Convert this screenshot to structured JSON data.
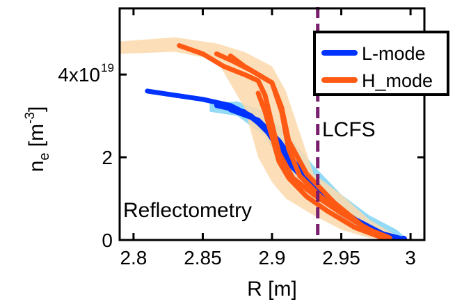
{
  "chart_data": {
    "type": "line",
    "xlabel": "R [m]",
    "ylabel_main": "n",
    "ylabel_sub": "e",
    "ylabel_unit_open": " [m",
    "ylabel_unit_exp": "-3",
    "ylabel_unit_close": "]",
    "xlim": [
      2.79,
      3.01
    ],
    "ylim": [
      0,
      5.6
    ],
    "x_ticks": [
      {
        "value": 2.8,
        "label": "2.8"
      },
      {
        "value": 2.85,
        "label": "2.85"
      },
      {
        "value": 2.9,
        "label": "2.9"
      },
      {
        "value": 2.95,
        "label": "2.95"
      },
      {
        "value": 3.0,
        "label": "3"
      }
    ],
    "y_ticks": [
      {
        "value": 0,
        "label": "0"
      },
      {
        "value": 2,
        "label": "2"
      },
      {
        "value": 4,
        "label": "4x10",
        "exponent": "19"
      }
    ],
    "legend_position": "top-right",
    "series": [
      {
        "name": "L-mode",
        "color": "#0033ff",
        "band_color": "#7fd3f5",
        "band_upper": [
          [
            2.855,
            3.3
          ],
          [
            2.875,
            3.35
          ],
          [
            2.895,
            3.1
          ],
          [
            2.91,
            2.6
          ],
          [
            2.93,
            1.8
          ],
          [
            2.95,
            1.1
          ],
          [
            2.97,
            0.6
          ],
          [
            2.99,
            0.25
          ],
          [
            2.995,
            0.1
          ]
        ],
        "band_lower": [
          [
            2.855,
            3.1
          ],
          [
            2.875,
            3.0
          ],
          [
            2.895,
            2.5
          ],
          [
            2.91,
            1.6
          ],
          [
            2.93,
            0.9
          ],
          [
            2.95,
            0.45
          ],
          [
            2.97,
            0.15
          ],
          [
            2.99,
            0.02
          ],
          [
            2.995,
            0.0
          ]
        ],
        "curves": [
          [
            [
              2.81,
              3.6
            ],
            [
              2.83,
              3.5
            ],
            [
              2.85,
              3.4
            ],
            [
              2.87,
              3.25
            ],
            [
              2.885,
              3.0
            ],
            [
              2.9,
              2.5
            ],
            [
              2.91,
              2.1
            ],
            [
              2.92,
              1.7
            ],
            [
              2.93,
              1.35
            ],
            [
              2.94,
              1.05
            ],
            [
              2.95,
              0.75
            ],
            [
              2.96,
              0.45
            ],
            [
              2.975,
              0.2
            ],
            [
              2.99,
              0.05
            ],
            [
              2.995,
              0.02
            ]
          ],
          [
            [
              2.86,
              3.25
            ],
            [
              2.88,
              3.1
            ],
            [
              2.895,
              2.7
            ],
            [
              2.905,
              2.2
            ],
            [
              2.915,
              1.75
            ],
            [
              2.93,
              1.25
            ],
            [
              2.945,
              0.85
            ],
            [
              2.96,
              0.5
            ],
            [
              2.98,
              0.15
            ],
            [
              2.995,
              0.02
            ]
          ],
          [
            [
              2.87,
              3.15
            ],
            [
              2.89,
              2.9
            ],
            [
              2.905,
              2.4
            ],
            [
              2.92,
              1.7
            ],
            [
              2.935,
              1.15
            ],
            [
              2.95,
              0.65
            ],
            [
              2.97,
              0.25
            ],
            [
              2.99,
              0.03
            ]
          ]
        ]
      },
      {
        "name": "H_mode",
        "color": "#ff5a14",
        "band_color": "#fbd9ad",
        "band_upper": [
          [
            2.79,
            4.8
          ],
          [
            2.83,
            4.9
          ],
          [
            2.86,
            4.75
          ],
          [
            2.88,
            4.55
          ],
          [
            2.9,
            4.2
          ],
          [
            2.91,
            3.6
          ],
          [
            2.92,
            2.6
          ],
          [
            2.93,
            1.6
          ],
          [
            2.95,
            1.1
          ],
          [
            2.97,
            0.5
          ],
          [
            2.99,
            0.1
          ]
        ],
        "band_lower": [
          [
            2.79,
            4.5
          ],
          [
            2.83,
            4.55
          ],
          [
            2.86,
            4.35
          ],
          [
            2.88,
            3.2
          ],
          [
            2.89,
            2.0
          ],
          [
            2.9,
            1.4
          ],
          [
            2.91,
            1.0
          ],
          [
            2.93,
            0.6
          ],
          [
            2.95,
            0.25
          ],
          [
            2.97,
            0.05
          ],
          [
            2.99,
            0.0
          ]
        ],
        "curves": [
          [
            [
              2.833,
              4.7
            ],
            [
              2.85,
              4.5
            ],
            [
              2.865,
              4.2
            ],
            [
              2.88,
              4.0
            ],
            [
              2.89,
              3.85
            ],
            [
              2.895,
              3.5
            ],
            [
              2.9,
              2.8
            ],
            [
              2.905,
              2.1
            ],
            [
              2.915,
              1.5
            ],
            [
              2.93,
              1.1
            ],
            [
              2.95,
              0.65
            ],
            [
              2.97,
              0.25
            ],
            [
              2.985,
              0.05
            ]
          ],
          [
            [
              2.86,
              4.5
            ],
            [
              2.87,
              4.35
            ],
            [
              2.885,
              4.1
            ],
            [
              2.9,
              3.8
            ],
            [
              2.907,
              3.1
            ],
            [
              2.912,
              2.2
            ],
            [
              2.92,
              1.55
            ],
            [
              2.935,
              1.05
            ],
            [
              2.955,
              0.55
            ],
            [
              2.975,
              0.15
            ],
            [
              2.985,
              0.03
            ]
          ],
          [
            [
              2.87,
              4.45
            ],
            [
              2.88,
              4.2
            ],
            [
              2.9,
              3.8
            ],
            [
              2.907,
              3.2
            ],
            [
              2.912,
              2.4
            ],
            [
              2.925,
              1.6
            ],
            [
              2.945,
              0.9
            ],
            [
              2.965,
              0.35
            ],
            [
              2.98,
              0.08
            ]
          ],
          [
            [
              2.89,
              3.55
            ],
            [
              2.895,
              3.1
            ],
            [
              2.9,
              2.5
            ],
            [
              2.905,
              1.9
            ],
            [
              2.912,
              1.5
            ],
            [
              2.925,
              1.05
            ],
            [
              2.94,
              0.7
            ],
            [
              2.96,
              0.3
            ],
            [
              2.98,
              0.05
            ]
          ]
        ]
      }
    ],
    "vline": {
      "x": 2.933,
      "color": "#7a1f6e",
      "label": "LCFS"
    },
    "annotation": "Reflectometry"
  }
}
